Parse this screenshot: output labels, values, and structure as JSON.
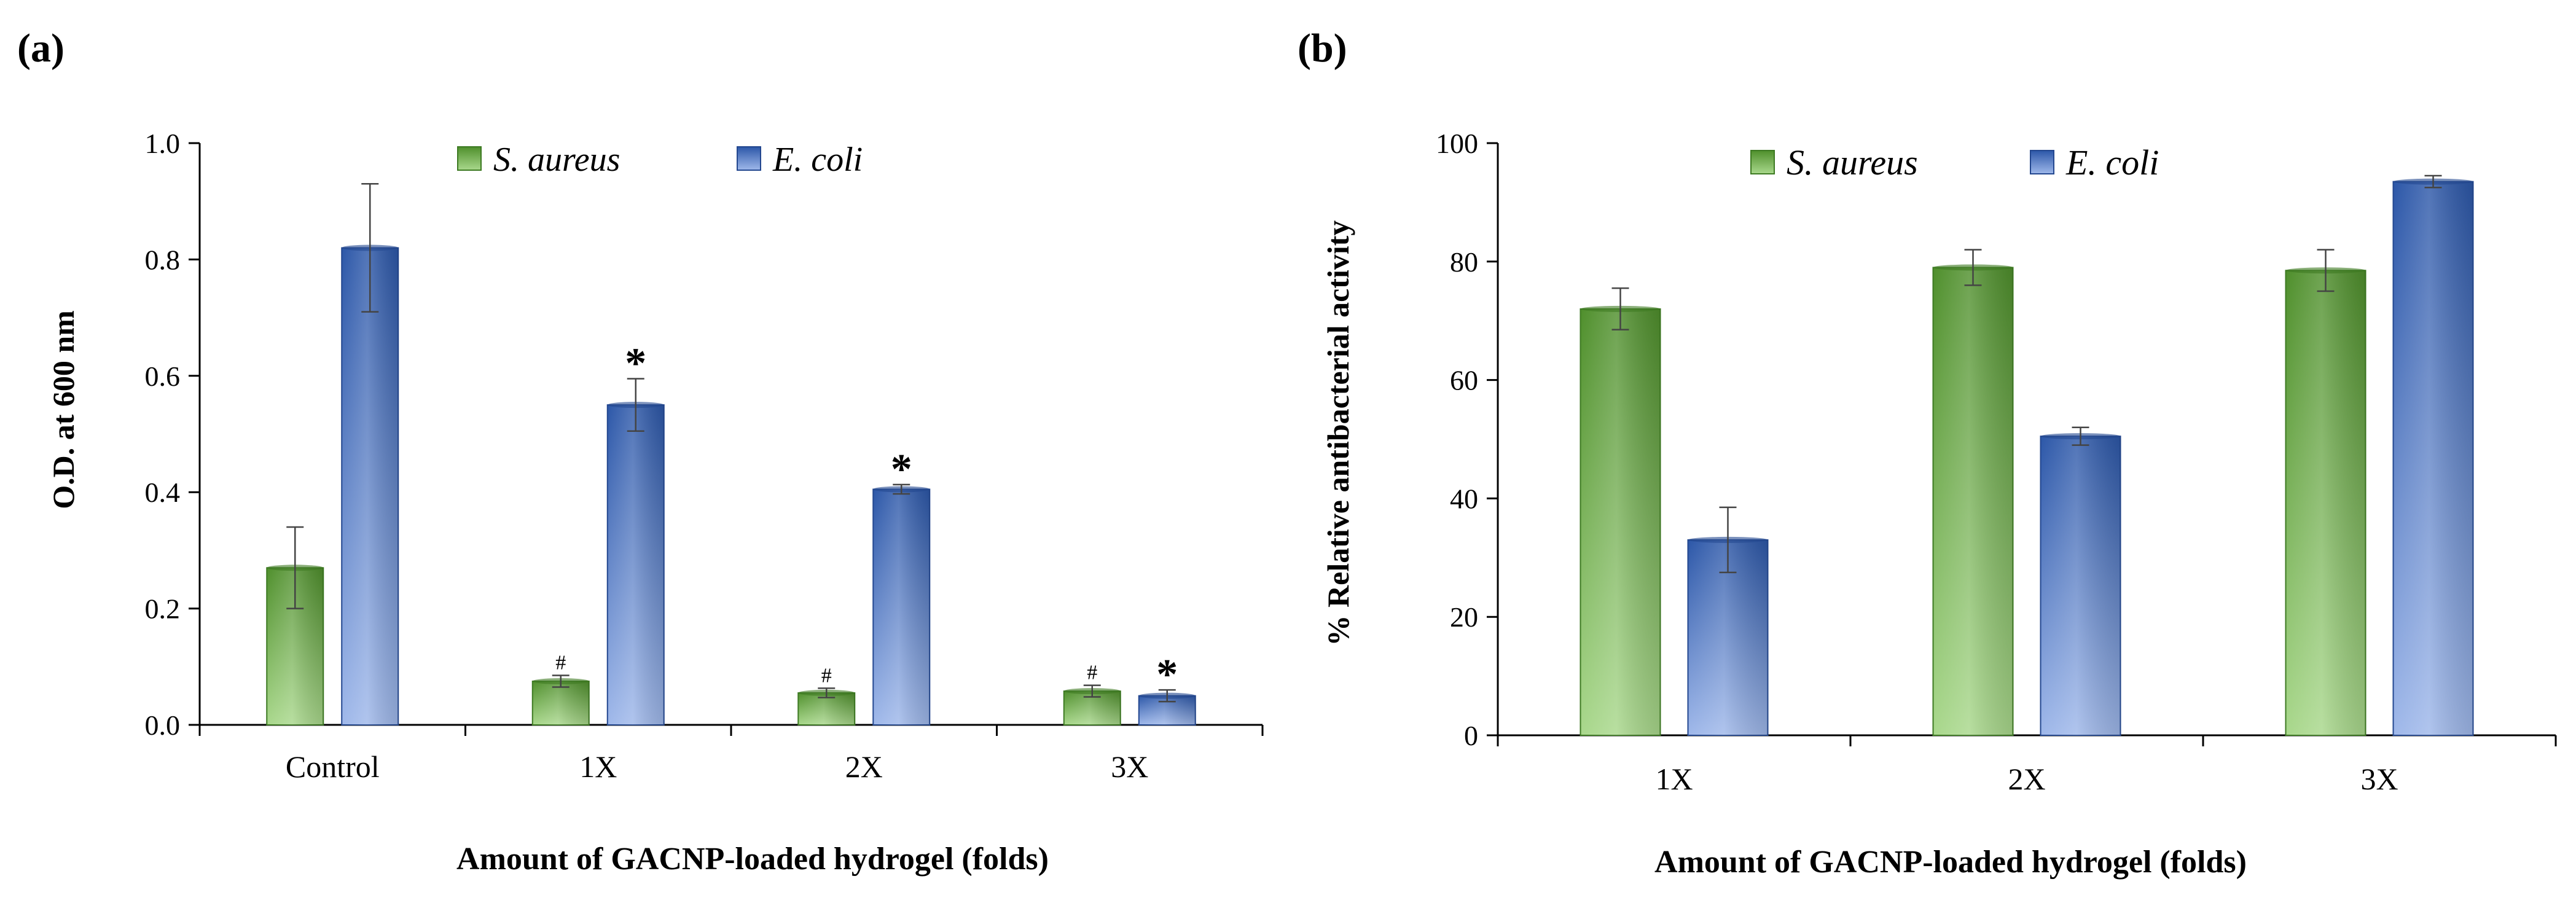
{
  "charts": [
    {
      "panel_label": "(a)",
      "chart_data": {
        "type": "bar",
        "categories": [
          "Control",
          "1X",
          "2X",
          "3X"
        ],
        "series": [
          {
            "name": "S. aureus",
            "color": "#6fb24a",
            "values": [
              0.27,
              0.075,
              0.055,
              0.058
            ],
            "errors": [
              0.07,
              0.01,
              0.008,
              0.01
            ],
            "marks": [
              "",
              "#",
              "#",
              "#"
            ]
          },
          {
            "name": "E. coli",
            "color": "#4a73c4",
            "values": [
              0.82,
              0.55,
              0.405,
              0.05
            ],
            "errors": [
              0.11,
              0.045,
              0.008,
              0.01
            ],
            "marks": [
              "",
              "*",
              "*",
              "*"
            ]
          }
        ],
        "xlabel": "Amount of GACNP-loaded hydrogel (folds)",
        "ylabel": "O.D. at 600 nm",
        "ylim": [
          0,
          1.0
        ],
        "yticks": [
          "0.0",
          "0.2",
          "0.4",
          "0.6",
          "0.8",
          "1.0"
        ],
        "legend_position": "top"
      }
    },
    {
      "panel_label": "(b)",
      "chart_data": {
        "type": "bar",
        "categories": [
          "1X",
          "2X",
          "3X"
        ],
        "series": [
          {
            "name": "S. aureus",
            "color": "#6fb24a",
            "values": [
              72,
              79,
              78.5
            ],
            "errors": [
              3.5,
              3,
              3.5
            ],
            "marks": [
              "",
              "",
              ""
            ]
          },
          {
            "name": "E. coli",
            "color": "#4a73c4",
            "values": [
              33,
              50.5,
              93.5
            ],
            "errors": [
              5.5,
              1.5,
              1
            ],
            "marks": [
              "",
              "",
              ""
            ]
          }
        ],
        "xlabel": "Amount of GACNP-loaded hydrogel (folds)",
        "ylabel": "% Relative antibacterial activity",
        "ylim": [
          0,
          100
        ],
        "yticks": [
          "0",
          "20",
          "40",
          "60",
          "80",
          "100"
        ],
        "legend_position": "top"
      }
    }
  ]
}
